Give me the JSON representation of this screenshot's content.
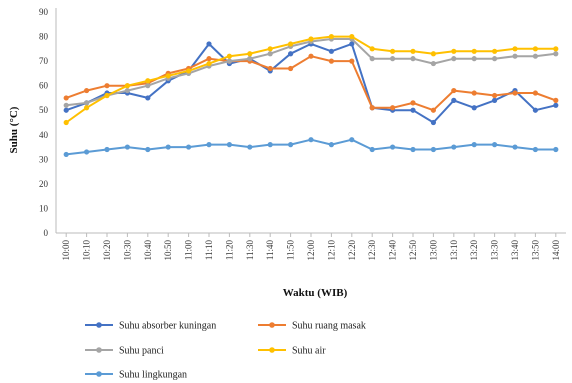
{
  "chart_data": {
    "type": "line",
    "title": "",
    "xlabel": "Waktu (WIB)",
    "ylabel": "Suhu (°C)",
    "ylim": [
      0,
      90
    ],
    "yticks": [
      0,
      10,
      20,
      30,
      40,
      50,
      60,
      70,
      80,
      90
    ],
    "grid": false,
    "legend_position": "bottom",
    "categories": [
      "10:00",
      "10:10",
      "10:20",
      "10:30",
      "10:40",
      "10:50",
      "11:00",
      "11:10",
      "11:20",
      "11:30",
      "11:40",
      "11:50",
      "12:00",
      "12:10",
      "12:20",
      "12:30",
      "12:40",
      "12:50",
      "13:00",
      "13:10",
      "13:20",
      "13:30",
      "13:40",
      "13:50",
      "14:00"
    ],
    "series": [
      {
        "name": "Suhu absorber kuningan",
        "color": "#4472C4",
        "values": [
          50,
          53,
          57,
          57,
          55,
          62,
          66,
          77,
          69,
          71,
          66,
          73,
          77,
          74,
          77,
          51,
          50,
          50,
          45,
          54,
          51,
          54,
          58,
          50,
          52
        ]
      },
      {
        "name": "Suhu ruang masak",
        "color": "#ED7D31",
        "values": [
          55,
          58,
          60,
          60,
          61,
          65,
          67,
          71,
          70,
          70,
          67,
          67,
          72,
          70,
          70,
          51,
          51,
          53,
          50,
          58,
          57,
          56,
          57,
          57,
          54
        ]
      },
      {
        "name": "Suhu panci",
        "color": "#A5A5A5",
        "values": [
          52,
          53,
          56,
          58,
          60,
          63,
          65,
          68,
          70,
          71,
          73,
          76,
          78,
          79,
          79,
          71,
          71,
          71,
          69,
          71,
          71,
          71,
          72,
          72,
          73
        ]
      },
      {
        "name": "Suhu air",
        "color": "#FFC000",
        "values": [
          45,
          51,
          56,
          60,
          62,
          64,
          66,
          69,
          72,
          73,
          75,
          77,
          79,
          80,
          80,
          75,
          74,
          74,
          73,
          74,
          74,
          74,
          75,
          75,
          75
        ]
      },
      {
        "name": "Suhu lingkungan",
        "color": "#5B9BD5",
        "values": [
          32,
          33,
          34,
          35,
          34,
          35,
          35,
          36,
          36,
          35,
          36,
          36,
          38,
          36,
          38,
          34,
          35,
          34,
          34,
          35,
          36,
          36,
          35,
          34,
          34
        ]
      }
    ]
  }
}
